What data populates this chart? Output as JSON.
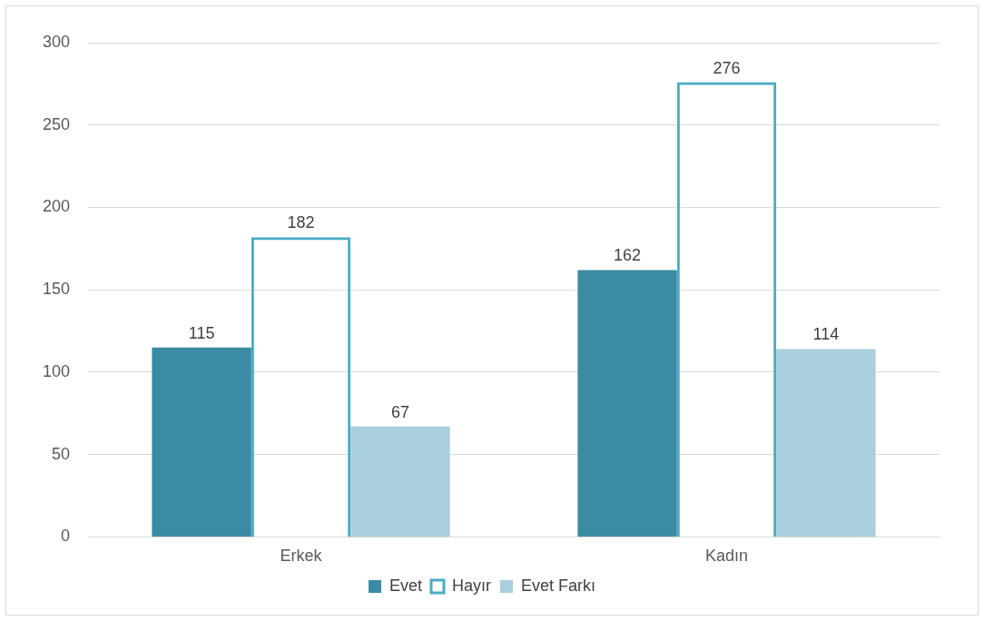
{
  "chart_data": {
    "type": "bar",
    "categories": [
      "Erkek",
      "Kadın"
    ],
    "series": [
      {
        "name": "Evet",
        "color": "#3a8ba3",
        "values": [
          115,
          162
        ]
      },
      {
        "name": "Hayır",
        "color": "#4bacc6",
        "values": [
          182,
          276
        ]
      },
      {
        "name": "Evet Farkı",
        "color": "#a9cfdc",
        "values": [
          67,
          114
        ]
      }
    ],
    "ylim": [
      0,
      300
    ],
    "yticks": [
      0,
      50,
      100,
      150,
      200,
      250,
      300
    ],
    "grid": "y",
    "legend": "bottom",
    "data_labels": true
  }
}
